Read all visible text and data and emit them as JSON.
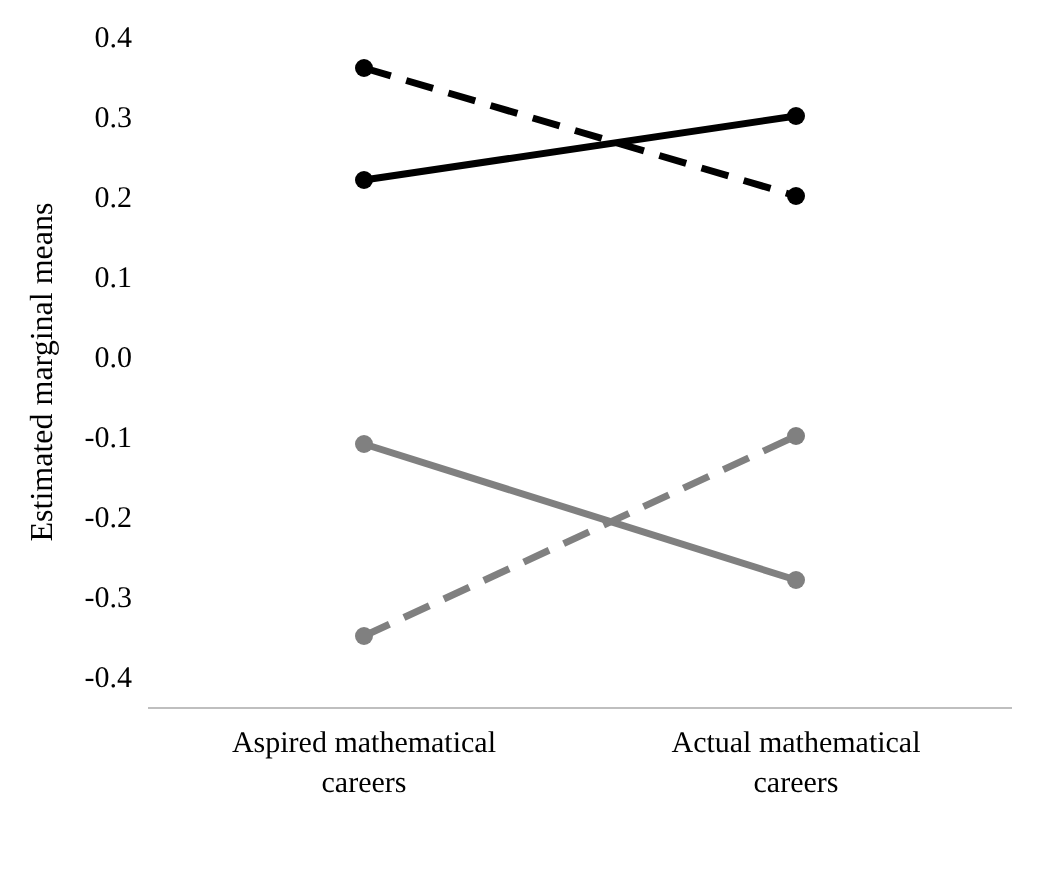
{
  "chart_data": {
    "type": "line",
    "ylabel": "Estimated marginal means",
    "categories": [
      "Aspired mathematical careers",
      "Actual mathematical careers"
    ],
    "series": [
      {
        "color": "#000000",
        "line_style": "dashed",
        "values": [
          0.36,
          0.2
        ]
      },
      {
        "color": "#000000",
        "line_style": "solid",
        "values": [
          0.22,
          0.3
        ]
      },
      {
        "color": "#808080",
        "line_style": "solid",
        "values": [
          -0.11,
          -0.28
        ]
      },
      {
        "color": "#808080",
        "line_style": "dashed",
        "values": [
          -0.35,
          -0.1
        ]
      }
    ],
    "ylim": [
      -0.44,
      0.4
    ],
    "yticks": [
      0.4,
      0.3,
      0.2,
      0.1,
      {
        "value": 0,
        "label": "0.0"
      },
      -0.1,
      -0.2,
      -0.3,
      -0.4
    ],
    "marker": "circle",
    "grid": false
  }
}
